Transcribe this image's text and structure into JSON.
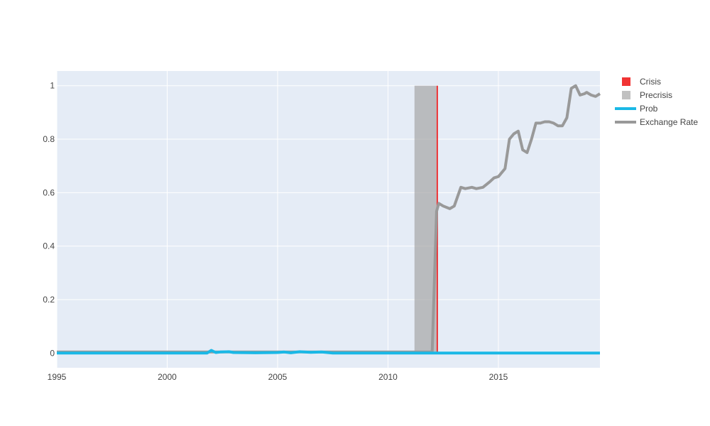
{
  "chart_data": {
    "type": "line",
    "title": "",
    "xlabel": "",
    "ylabel": "",
    "xlim": [
      1995,
      2019.6
    ],
    "ylim": [
      -0.055,
      1.055
    ],
    "x_ticks": [
      {
        "value": 1995,
        "label": "1995"
      },
      {
        "value": 2000,
        "label": "2000"
      },
      {
        "value": 2005,
        "label": "2005"
      },
      {
        "value": 2010,
        "label": "2010"
      },
      {
        "value": 2015,
        "label": "2015"
      }
    ],
    "y_ticks": [
      {
        "value": 0,
        "label": "0"
      },
      {
        "value": 0.2,
        "label": "0.2"
      },
      {
        "value": 0.4,
        "label": "0.4"
      },
      {
        "value": 0.6,
        "label": "0.6"
      },
      {
        "value": 0.8,
        "label": "0.8"
      },
      {
        "value": 1,
        "label": "1"
      }
    ],
    "grid": true,
    "legend_position": "top-right",
    "background": "#e5ecf6",
    "series": [
      {
        "name": "Crisis",
        "kind": "bar",
        "color": "#ee1111",
        "x_start": 2012.2,
        "x_end": 2012.26,
        "y": 1
      },
      {
        "name": "Precrisis",
        "kind": "bar",
        "color": "#a6a6a6",
        "x_start": 2011.2,
        "x_end": 2012.2,
        "y": 1
      },
      {
        "name": "Prob",
        "kind": "line",
        "color": "#1ab8e6",
        "x": [
          1995,
          2001.8,
          2002.0,
          2002.2,
          2002.4,
          2002.8,
          2003.0,
          2004.0,
          2005.0,
          2005.3,
          2005.6,
          2006.0,
          2006.5,
          2007.0,
          2007.5,
          2012.2,
          2019.6
        ],
        "y": [
          0,
          0,
          0.01,
          0.002,
          0.004,
          0.005,
          0.002,
          0.001,
          0.002,
          0.004,
          0.001,
          0.005,
          0.003,
          0.004,
          0.0,
          0.0,
          0.0
        ]
      },
      {
        "name": "Exchange Rate",
        "kind": "line",
        "color": "#999999",
        "x": [
          1995,
          2012.0,
          2012.2,
          2012.3,
          2012.5,
          2012.8,
          2013.0,
          2013.3,
          2013.5,
          2013.8,
          2014.0,
          2014.3,
          2014.6,
          2014.8,
          2015.0,
          2015.3,
          2015.5,
          2015.7,
          2015.9,
          2016.1,
          2016.3,
          2016.5,
          2016.7,
          2016.9,
          2017.1,
          2017.3,
          2017.5,
          2017.7,
          2017.9,
          2018.1,
          2018.3,
          2018.5,
          2018.7,
          2018.9,
          2019.0,
          2019.2,
          2019.4,
          2019.6
        ],
        "y": [
          0.004,
          0.004,
          0.53,
          0.56,
          0.55,
          0.54,
          0.55,
          0.62,
          0.615,
          0.62,
          0.615,
          0.62,
          0.64,
          0.655,
          0.66,
          0.69,
          0.8,
          0.82,
          0.83,
          0.76,
          0.75,
          0.8,
          0.86,
          0.86,
          0.865,
          0.865,
          0.86,
          0.85,
          0.85,
          0.88,
          0.99,
          1.0,
          0.965,
          0.97,
          0.975,
          0.965,
          0.96,
          0.97
        ]
      }
    ]
  }
}
